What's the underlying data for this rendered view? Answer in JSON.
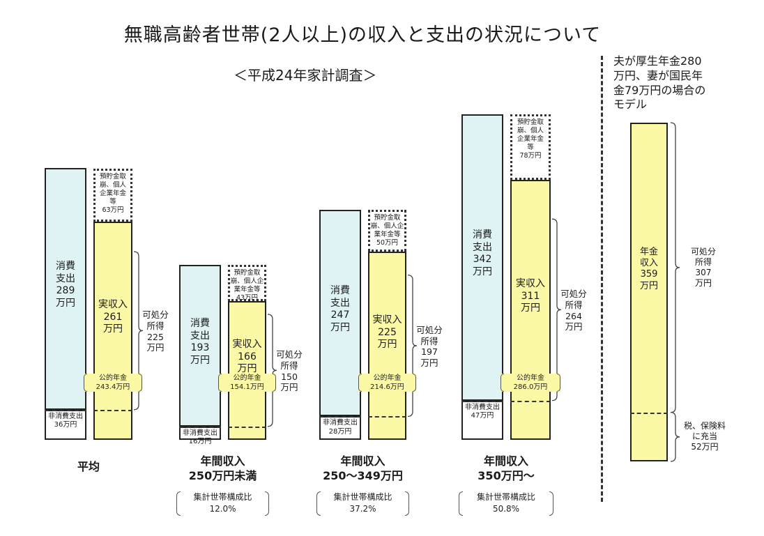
{
  "title": "無職高齢者世帯(2人以上)の収入と支出の状況について",
  "subtitle": "＜平成24年家計調査＞",
  "model_title": [
    "夫が厚生年金280",
    "万円、妻が国民年",
    "金79万円の場合の",
    "モデル"
  ],
  "chart_data": {
    "type": "bar",
    "unit": "万円",
    "groups": [
      {
        "key": "avg",
        "name_lines": [
          "平均"
        ],
        "ratio_label": "",
        "ratio_value": "",
        "consumption": 289,
        "consumption_label": [
          "消費",
          "支出",
          "289",
          "万円"
        ],
        "non_consumption": 36,
        "non_consumption_label": [
          "非消費支出",
          "36万円"
        ],
        "actual_income": 261,
        "actual_income_label": [
          "実収入",
          "261",
          "万円"
        ],
        "drawdown": 63,
        "drawdown_label": [
          "預貯金取",
          "崩、個人",
          "企業年金",
          "等",
          "63万円"
        ],
        "disposable": 225,
        "disposable_label": [
          "可処分",
          "所得",
          "225",
          "万円"
        ],
        "public_pension": 243.4,
        "public_pension_label": [
          "公的年金",
          "243.4万円"
        ]
      },
      {
        "key": "under250",
        "name_lines": [
          "年間収入",
          "250万円未満"
        ],
        "ratio_label": "集計世帯構成比",
        "ratio_value": "12.0%",
        "consumption": 193,
        "consumption_label": [
          "消費",
          "支出",
          "193",
          "万円"
        ],
        "non_consumption": 16,
        "non_consumption_label": [
          "非消費支出",
          "16万円"
        ],
        "actual_income": 166,
        "actual_income_label": [
          "実収入",
          "166",
          "万円"
        ],
        "drawdown": 43,
        "drawdown_label": [
          "預貯金取",
          "崩、個人企",
          "業年金等",
          "43万円"
        ],
        "disposable": 150,
        "disposable_label": [
          "可処分",
          "所得",
          "150",
          "万円"
        ],
        "public_pension": 154.1,
        "public_pension_label": [
          "公的年金",
          "154.1万円"
        ]
      },
      {
        "key": "250to349",
        "name_lines": [
          "年間収入",
          "250～349万円"
        ],
        "ratio_label": "集計世帯構成比",
        "ratio_value": "37.2%",
        "consumption": 247,
        "consumption_label": [
          "消費",
          "支出",
          "247",
          "万円"
        ],
        "non_consumption": 28,
        "non_consumption_label": [
          "非消費支出",
          "28万円"
        ],
        "actual_income": 225,
        "actual_income_label": [
          "実収入",
          "225",
          "万円"
        ],
        "drawdown": 50,
        "drawdown_label": [
          "預貯金取",
          "崩、個人企",
          "業年金等",
          "50万円"
        ],
        "disposable": 197,
        "disposable_label": [
          "可処分",
          "所得",
          "197",
          "万円"
        ],
        "public_pension": 214.6,
        "public_pension_label": [
          "公的年金",
          "214.6万円"
        ]
      },
      {
        "key": "over350",
        "name_lines": [
          "年間収入",
          "350万円～"
        ],
        "ratio_label": "集計世帯構成比",
        "ratio_value": "50.8%",
        "consumption": 342,
        "consumption_label": [
          "消費",
          "支出",
          "342",
          "万円"
        ],
        "non_consumption": 47,
        "non_consumption_label": [
          "非消費支出",
          "47万円"
        ],
        "actual_income": 311,
        "actual_income_label": [
          "実収入",
          "311",
          "万円"
        ],
        "drawdown": 78,
        "drawdown_label": [
          "預貯金取",
          "崩、個人",
          "企業年金",
          "等",
          "78万円"
        ],
        "disposable": 264,
        "disposable_label": [
          "可処分",
          "所得",
          "264",
          "万円"
        ],
        "public_pension": 286.0,
        "public_pension_label": [
          "公的年金",
          "286.0万円"
        ]
      }
    ],
    "model": {
      "pension_income": 359,
      "pension_income_label": [
        "年金",
        "収入",
        "359",
        "万円"
      ],
      "disposable": 307,
      "disposable_label": [
        "可処分",
        "所得",
        "307",
        "万円"
      ],
      "tax_insurance": 52,
      "tax_insurance_label": [
        "税、保険料",
        "に充当",
        "52万円"
      ]
    },
    "colors": {
      "consumption": "#dff3f4",
      "income": "#fbf8a6",
      "arrow": "#f2b8b8",
      "border": "#222222"
    }
  }
}
